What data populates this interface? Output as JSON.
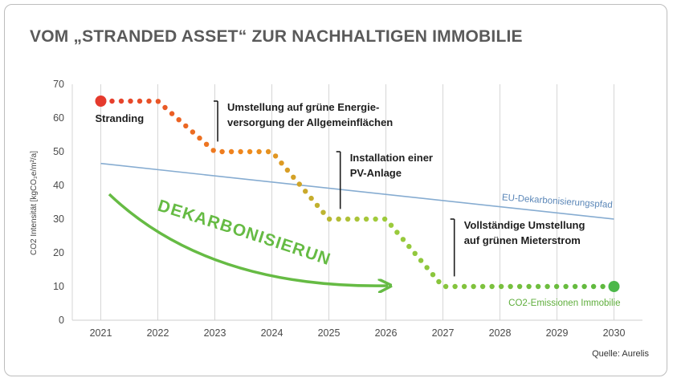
{
  "title": "VOM „STRANDED ASSET“ ZUR NACHHALTIGEN IMMOBILIE",
  "source": "Quelle: Aurelis",
  "chart_data": {
    "type": "line",
    "title": "VOM „STRANDED ASSET“ ZUR NACHHALTIGEN IMMOBILIE",
    "ylabel": "CO2 Intensität [kgCO₂e/m²/a]",
    "xlabel": "",
    "x_ticks": [
      "2021",
      "2022",
      "2023",
      "2024",
      "2025",
      "2026",
      "2027",
      "2028",
      "2029",
      "2030"
    ],
    "y_ticks": [
      "0",
      "10",
      "20",
      "30",
      "40",
      "50",
      "60",
      "70"
    ],
    "xlim": [
      2020.5,
      2030.5
    ],
    "ylim": [
      0,
      70
    ],
    "grid": "vertical",
    "series": [
      {
        "name": "CO2-Emissionen Immobilie",
        "style": "dotted-gradient",
        "colors": [
          "#e53a2d",
          "#f08a1c",
          "#9dcc3c",
          "#5cb83f"
        ],
        "points": [
          [
            2021,
            65
          ],
          [
            2022,
            65
          ],
          [
            2023,
            50
          ],
          [
            2024,
            50
          ],
          [
            2025,
            30
          ],
          [
            2026,
            30
          ],
          [
            2027,
            10
          ],
          [
            2030,
            10
          ]
        ]
      },
      {
        "name": "EU-Dekarbonisierungspfad",
        "style": "line",
        "color": "#86acd1",
        "points": [
          [
            2021,
            46.5
          ],
          [
            2030,
            30
          ]
        ]
      }
    ],
    "annotations": {
      "start": {
        "text": "Stranding",
        "x": 2021,
        "y": 65
      },
      "steps": [
        {
          "lines": [
            "Umstellung auf grüne Energie-",
            "versorgung der Allgemeinflächen"
          ],
          "x": 2023.05,
          "y_from": 53,
          "y_to": 65
        },
        {
          "lines": [
            "Installation einer",
            "PV-Anlage"
          ],
          "x": 2025.2,
          "y_from": 33,
          "y_to": 50
        },
        {
          "lines": [
            "Vollständige Umstellung",
            "auf grünen Mieterstrom"
          ],
          "x": 2027.2,
          "y_from": 13,
          "y_to": 30
        }
      ],
      "eu_label": "EU-Dekarbonisierungspfad",
      "co2_label": "CO2-Emissionen Immobilie",
      "arrow_label": "DEKARBONISIERUNG"
    }
  }
}
